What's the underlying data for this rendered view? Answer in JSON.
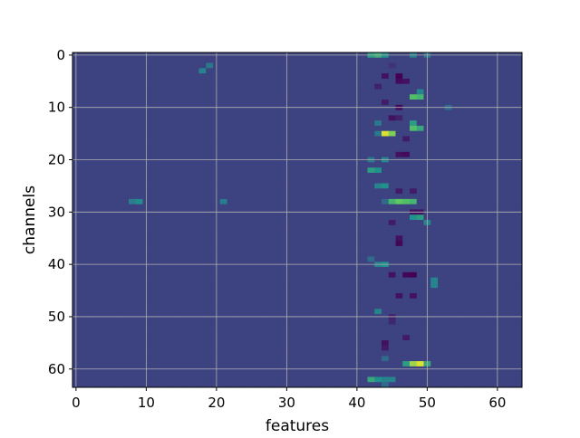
{
  "chart_data": {
    "type": "heatmap",
    "title": "",
    "xlabel": "features",
    "ylabel": "channels",
    "cols": 64,
    "rows": 64,
    "xlim": [
      -0.5,
      63.5
    ],
    "ylim": [
      63.5,
      -0.5
    ],
    "y_axis_inverted": true,
    "x_ticks": [
      0,
      10,
      20,
      30,
      40,
      50,
      60
    ],
    "y_ticks": [
      0,
      10,
      20,
      30,
      40,
      50,
      60
    ],
    "x_tick_labels": [
      "0",
      "10",
      "20",
      "30",
      "40",
      "50",
      "60"
    ],
    "y_tick_labels": [
      "0",
      "10",
      "20",
      "30",
      "40",
      "50",
      "60"
    ],
    "grid": true,
    "colormap": "viridis",
    "value_range": [
      0,
      1
    ],
    "background_level": 0.2,
    "cells": [
      [
        0,
        42,
        0.55
      ],
      [
        0,
        43,
        0.62
      ],
      [
        0,
        44,
        0.5
      ],
      [
        0,
        48,
        0.42
      ],
      [
        0,
        50,
        0.4
      ],
      [
        2,
        19,
        0.4
      ],
      [
        2,
        45,
        0.15
      ],
      [
        3,
        18,
        0.45
      ],
      [
        4,
        44,
        0.05
      ],
      [
        4,
        46,
        0.0
      ],
      [
        5,
        46,
        0.03
      ],
      [
        5,
        47,
        0.05
      ],
      [
        6,
        43,
        0.1
      ],
      [
        7,
        49,
        0.45
      ],
      [
        8,
        48,
        0.7
      ],
      [
        8,
        49,
        0.65
      ],
      [
        9,
        44,
        0.08
      ],
      [
        10,
        46,
        0.02
      ],
      [
        10,
        53,
        0.35
      ],
      [
        12,
        45,
        0.05
      ],
      [
        12,
        46,
        0.1
      ],
      [
        13,
        43,
        0.4
      ],
      [
        13,
        48,
        0.55
      ],
      [
        14,
        48,
        0.7
      ],
      [
        14,
        49,
        0.6
      ],
      [
        15,
        43,
        0.4
      ],
      [
        15,
        44,
        0.95
      ],
      [
        15,
        45,
        0.8
      ],
      [
        16,
        47,
        0.08
      ],
      [
        19,
        46,
        0.05
      ],
      [
        19,
        47,
        0.03
      ],
      [
        20,
        42,
        0.4
      ],
      [
        20,
        44,
        0.45
      ],
      [
        22,
        42,
        0.55
      ],
      [
        22,
        43,
        0.5
      ],
      [
        25,
        43,
        0.45
      ],
      [
        25,
        44,
        0.5
      ],
      [
        26,
        46,
        0.08
      ],
      [
        26,
        48,
        0.08
      ],
      [
        28,
        8,
        0.42
      ],
      [
        28,
        9,
        0.48
      ],
      [
        28,
        21,
        0.42
      ],
      [
        28,
        44,
        0.35
      ],
      [
        28,
        45,
        0.65
      ],
      [
        28,
        46,
        0.75
      ],
      [
        28,
        47,
        0.7
      ],
      [
        28,
        48,
        0.65
      ],
      [
        30,
        48,
        0.05
      ],
      [
        30,
        49,
        0.05
      ],
      [
        31,
        48,
        0.5
      ],
      [
        31,
        49,
        0.55
      ],
      [
        32,
        45,
        0.08
      ],
      [
        32,
        50,
        0.45
      ],
      [
        35,
        46,
        0.05
      ],
      [
        36,
        46,
        0.02
      ],
      [
        39,
        42,
        0.35
      ],
      [
        40,
        43,
        0.45
      ],
      [
        40,
        44,
        0.5
      ],
      [
        42,
        45,
        0.05
      ],
      [
        42,
        47,
        0.02
      ],
      [
        42,
        48,
        0.0
      ],
      [
        43,
        51,
        0.45
      ],
      [
        44,
        51,
        0.45
      ],
      [
        46,
        46,
        0.05
      ],
      [
        46,
        48,
        0.05
      ],
      [
        49,
        43,
        0.45
      ],
      [
        50,
        45,
        0.1
      ],
      [
        51,
        45,
        0.12
      ],
      [
        54,
        47,
        0.08
      ],
      [
        55,
        44,
        0.05
      ],
      [
        56,
        44,
        0.08
      ],
      [
        58,
        44,
        0.35
      ],
      [
        59,
        47,
        0.55
      ],
      [
        59,
        48,
        0.85
      ],
      [
        59,
        49,
        0.95
      ],
      [
        59,
        50,
        0.6
      ],
      [
        62,
        42,
        0.6
      ],
      [
        62,
        43,
        0.5
      ],
      [
        62,
        44,
        0.45
      ],
      [
        62,
        45,
        0.45
      ],
      [
        63,
        44,
        0.35
      ]
    ]
  }
}
